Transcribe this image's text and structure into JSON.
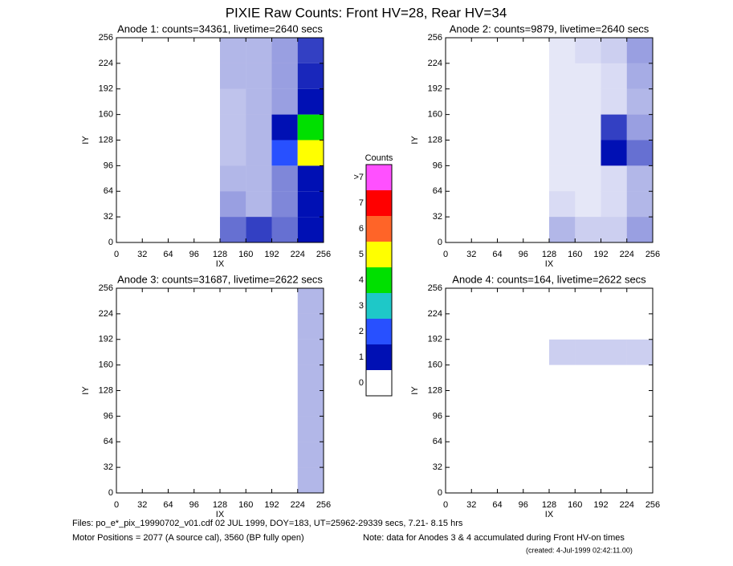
{
  "title": "PIXIE Raw Counts:  Front HV=28, Rear HV=34",
  "chart_data": [
    {
      "type": "heatmap",
      "title": "Anode 1: counts=34361, livetime=2640 secs",
      "x_label": "IX",
      "y_label": "IY",
      "xlim": [
        0,
        256
      ],
      "ylim": [
        0,
        256
      ],
      "xticks": [
        0,
        32,
        64,
        96,
        128,
        160,
        192,
        224,
        256
      ],
      "yticks": [
        0,
        32,
        64,
        96,
        128,
        160,
        192,
        224,
        256
      ],
      "x_bins": [
        0,
        32,
        64,
        96,
        128,
        160,
        192,
        224,
        256
      ],
      "y_bins": [
        0,
        32,
        64,
        96,
        128,
        160,
        192,
        224,
        256
      ],
      "z": [
        [
          0,
          0,
          0,
          0,
          0.6,
          0.8,
          0.6,
          1
        ],
        [
          0,
          0,
          0,
          0,
          0.4,
          0.3,
          0.5,
          1
        ],
        [
          0,
          0,
          0,
          0,
          0.3,
          0.3,
          0.5,
          1.2
        ],
        [
          0,
          0,
          0,
          0,
          0.25,
          0.3,
          2,
          5
        ],
        [
          0,
          0,
          0,
          0,
          0.25,
          0.3,
          1.5,
          4
        ],
        [
          0,
          0,
          0,
          0,
          0.25,
          0.3,
          0.4,
          1.2
        ],
        [
          0,
          0,
          0,
          0,
          0.3,
          0.3,
          0.4,
          0.9
        ],
        [
          0,
          0,
          0,
          0,
          0.3,
          0.3,
          0.4,
          0.8
        ]
      ]
    },
    {
      "type": "heatmap",
      "title": "Anode 2: counts=9879, livetime=2640 secs",
      "x_label": "IX",
      "y_label": "IY",
      "xlim": [
        0,
        256
      ],
      "ylim": [
        0,
        256
      ],
      "xticks": [
        0,
        32,
        64,
        96,
        128,
        160,
        192,
        224,
        256
      ],
      "yticks": [
        0,
        32,
        64,
        96,
        128,
        160,
        192,
        224,
        256
      ],
      "x_bins": [
        0,
        32,
        64,
        96,
        128,
        160,
        192,
        224,
        256
      ],
      "y_bins": [
        0,
        32,
        64,
        96,
        128,
        160,
        192,
        224,
        256
      ],
      "z": [
        [
          0,
          0,
          0,
          0,
          0.3,
          0.2,
          0.2,
          0.4
        ],
        [
          0,
          0,
          0,
          0,
          0.15,
          0.1,
          0.15,
          0.3
        ],
        [
          0,
          0,
          0,
          0,
          0.1,
          0.1,
          0.15,
          0.3
        ],
        [
          0,
          0,
          0,
          0,
          0.1,
          0.1,
          1.2,
          0.6
        ],
        [
          0,
          0,
          0,
          0,
          0.1,
          0.1,
          0.8,
          0.4
        ],
        [
          0,
          0,
          0,
          0,
          0.1,
          0.1,
          0.15,
          0.3
        ],
        [
          0,
          0,
          0,
          0,
          0.1,
          0.1,
          0.15,
          0.35
        ],
        [
          0,
          0,
          0,
          0,
          0.1,
          0.15,
          0.2,
          0.4
        ]
      ]
    },
    {
      "type": "heatmap",
      "title": "Anode 3: counts=31687, livetime=2622 secs",
      "x_label": "IX",
      "y_label": "IY",
      "xlim": [
        0,
        256
      ],
      "ylim": [
        0,
        256
      ],
      "xticks": [
        0,
        32,
        64,
        96,
        128,
        160,
        192,
        224,
        256
      ],
      "yticks": [
        0,
        32,
        64,
        96,
        128,
        160,
        192,
        224,
        256
      ],
      "x_bins": [
        0,
        32,
        64,
        96,
        128,
        160,
        192,
        224,
        256
      ],
      "y_bins": [
        0,
        32,
        64,
        96,
        128,
        160,
        192,
        224,
        256
      ],
      "z": [
        [
          0,
          0,
          0,
          0,
          0,
          0,
          0,
          0.3
        ],
        [
          0,
          0,
          0,
          0,
          0,
          0,
          0,
          0.3
        ],
        [
          0,
          0,
          0,
          0,
          0,
          0,
          0,
          0.3
        ],
        [
          0,
          0,
          0,
          0,
          0,
          0,
          0,
          0.3
        ],
        [
          0,
          0,
          0,
          0,
          0,
          0,
          0,
          0.3
        ],
        [
          0,
          0,
          0,
          0,
          0,
          0,
          0,
          0.3
        ],
        [
          0,
          0,
          0,
          0,
          0,
          0,
          0,
          0.3
        ],
        [
          0,
          0,
          0,
          0,
          0,
          0,
          0,
          0.3
        ]
      ]
    },
    {
      "type": "heatmap",
      "title": "Anode 4: counts=164, livetime=2622 secs",
      "x_label": "IX",
      "y_label": "IY",
      "xlim": [
        0,
        256
      ],
      "ylim": [
        0,
        256
      ],
      "xticks": [
        0,
        32,
        64,
        96,
        128,
        160,
        192,
        224,
        256
      ],
      "yticks": [
        0,
        32,
        64,
        96,
        128,
        160,
        192,
        224,
        256
      ],
      "x_bins": [
        0,
        32,
        64,
        96,
        128,
        160,
        192,
        224,
        256
      ],
      "y_bins": [
        0,
        32,
        64,
        96,
        128,
        160,
        192,
        224,
        256
      ],
      "z": [
        [
          0,
          0,
          0,
          0,
          0,
          0,
          0,
          0
        ],
        [
          0,
          0,
          0,
          0,
          0,
          0,
          0,
          0
        ],
        [
          0,
          0,
          0,
          0,
          0,
          0,
          0,
          0
        ],
        [
          0,
          0,
          0,
          0,
          0,
          0,
          0,
          0
        ],
        [
          0,
          0,
          0,
          0,
          0,
          0,
          0,
          0
        ],
        [
          0,
          0,
          0,
          0,
          0.2,
          0.2,
          0.2,
          0.2
        ],
        [
          0,
          0,
          0,
          0,
          0,
          0,
          0,
          0
        ],
        [
          0,
          0,
          0,
          0,
          0,
          0,
          0,
          0
        ]
      ]
    }
  ],
  "colorbar": {
    "title": "Counts",
    "ticks": [
      0,
      1,
      2,
      3,
      4,
      5,
      6,
      7,
      {
        "value": 8,
        "label": ">7"
      }
    ],
    "colors": [
      "#ffffff",
      "#0010b4",
      "#2850ff",
      "#1ec8c8",
      "#00e000",
      "#ffff00",
      "#ff6428",
      "#ff0000",
      "#ff50ff"
    ]
  },
  "footer": {
    "files": "Files: po_e*_pix_19990702_v01.cdf    02 JUL 1999, DOY=183, UT=25962-29339 secs,  7.21- 8.15 hrs",
    "motor": "Motor Positions = 2077 (A source cal), 3560 (BP fully open)",
    "note": "Note: data for Anodes 3 & 4 accumulated during Front HV-on times",
    "created": "(created:  4-Jul-1999 02:42:11.00)"
  }
}
